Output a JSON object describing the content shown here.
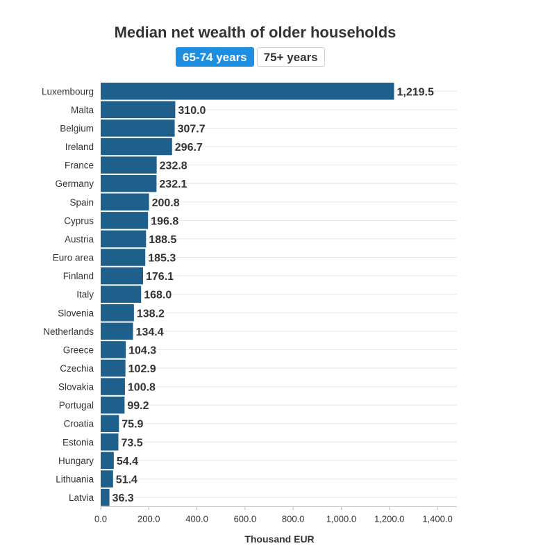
{
  "tabs": {
    "active_label": "65-74 years",
    "other_label": "75+ years"
  },
  "colors": {
    "bar": "#1f5f8b",
    "tab_active": "#1e8fe0",
    "grid": "#e6e6e6"
  },
  "chart_data": {
    "type": "bar",
    "orientation": "horizontal",
    "title": "Median net wealth of older households",
    "xlabel": "Thousand EUR",
    "ylabel": "",
    "xlim": [
      0,
      1400
    ],
    "xticks": [
      "0.0",
      "200.0",
      "400.0",
      "600.0",
      "800.0",
      "1,000.0",
      "1,200.0",
      "1,400.0"
    ],
    "grid": true,
    "categories": [
      "Luxembourg",
      "Malta",
      "Belgium",
      "Ireland",
      "France",
      "Germany",
      "Spain",
      "Cyprus",
      "Austria",
      "Euro area",
      "Finland",
      "Italy",
      "Slovenia",
      "Netherlands",
      "Greece",
      "Czechia",
      "Slovakia",
      "Portugal",
      "Croatia",
      "Estonia",
      "Hungary",
      "Lithuania",
      "Latvia"
    ],
    "values": [
      1219.5,
      310.0,
      307.7,
      296.7,
      232.8,
      232.1,
      200.8,
      196.8,
      188.5,
      185.3,
      176.1,
      168.0,
      138.2,
      134.4,
      104.3,
      102.9,
      100.8,
      99.2,
      75.9,
      73.5,
      54.4,
      51.4,
      36.3
    ],
    "value_labels": [
      "1,219.5",
      "310.0",
      "307.7",
      "296.7",
      "232.8",
      "232.1",
      "200.8",
      "196.8",
      "188.5",
      "185.3",
      "176.1",
      "168.0",
      "138.2",
      "134.4",
      "104.3",
      "102.9",
      "100.8",
      "99.2",
      "75.9",
      "73.5",
      "54.4",
      "51.4",
      "36.3"
    ]
  }
}
